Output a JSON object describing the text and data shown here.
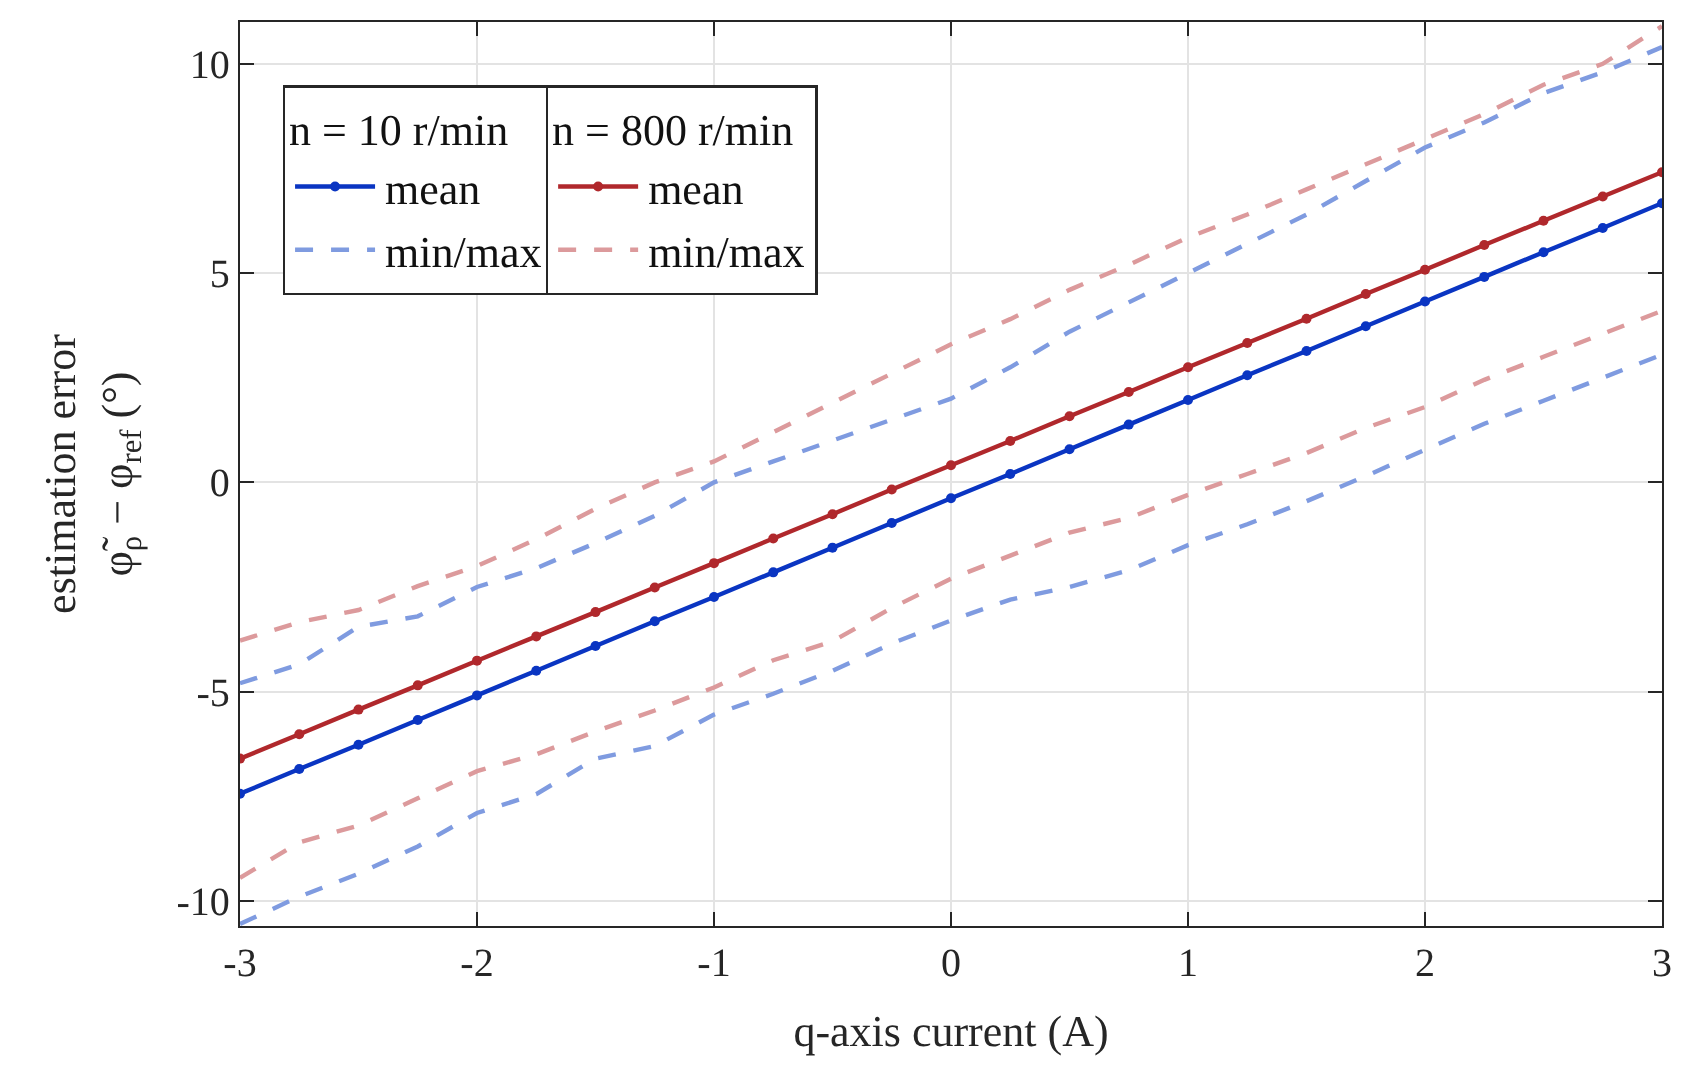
{
  "chart_data": {
    "type": "line",
    "xlabel": "q-axis current (A)",
    "ylabel": "estimation error\nφ̃$_{ρ}$ − φ$_{ref}$ (°)",
    "legend_title": [
      "n = 10 r/min",
      "n = 800 r/min"
    ],
    "x": [
      -3,
      -2.75,
      -2.5,
      -2.25,
      -2,
      -1.75,
      -1.5,
      -1.25,
      -1,
      -0.75,
      -0.5,
      -0.25,
      0,
      0.25,
      0.5,
      0.75,
      1,
      1.25,
      1.5,
      1.75,
      2,
      2.25,
      2.5,
      2.75,
      3
    ],
    "series": [
      {
        "name": "mean",
        "color": "#0a35c2",
        "marker": "circle",
        "line_style": "solid",
        "values": [
          -7.44,
          -6.85,
          -6.27,
          -5.68,
          -5.09,
          -4.5,
          -3.91,
          -3.32,
          -2.74,
          -2.15,
          -1.56,
          -0.97,
          -0.38,
          0.2,
          0.79,
          1.38,
          1.97,
          2.56,
          3.14,
          3.73,
          4.32,
          4.91,
          5.5,
          6.08,
          6.67
        ]
      },
      {
        "name": "min/max",
        "color": "#7f9be0",
        "marker": "none",
        "line_style": "dashed",
        "values": [
          -4.8,
          -4.35,
          -3.45,
          -3.2,
          -2.5,
          -2.05,
          -1.45,
          -0.8,
          0.0,
          0.5,
          1.0,
          1.5,
          2.0,
          2.75,
          3.6,
          4.3,
          5.0,
          5.7,
          6.4,
          7.2,
          8.0,
          8.6,
          9.3,
          9.8,
          10.4
        ]
      },
      {
        "color": "#7f9be0",
        "marker": "none",
        "line_style": "dashed",
        "values": [
          -10.55,
          -9.9,
          -9.35,
          -8.7,
          -7.9,
          -7.45,
          -6.6,
          -6.3,
          -5.55,
          -5.05,
          -4.5,
          -3.85,
          -3.3,
          -2.8,
          -2.5,
          -2.1,
          -1.5,
          -1.0,
          -0.45,
          0.15,
          0.78,
          1.4,
          1.95,
          2.5,
          3.05
        ]
      },
      {
        "name": "mean",
        "color": "#b0282c",
        "marker": "circle",
        "line_style": "solid",
        "values": [
          -6.6,
          -6.02,
          -5.43,
          -4.85,
          -4.26,
          -3.68,
          -3.1,
          -2.51,
          -1.93,
          -1.34,
          -0.76,
          -0.17,
          0.41,
          0.99,
          1.58,
          2.16,
          2.75,
          3.33,
          3.91,
          4.5,
          5.08,
          5.67,
          6.25,
          6.83,
          7.41
        ]
      },
      {
        "name": "min/max",
        "color": "#dc9a9c",
        "marker": "none",
        "line_style": "dashed",
        "values": [
          -3.78,
          -3.34,
          -3.05,
          -2.48,
          -2.0,
          -1.36,
          -0.63,
          0.0,
          0.5,
          1.2,
          1.9,
          2.6,
          3.3,
          3.9,
          4.6,
          5.2,
          5.85,
          6.4,
          7.0,
          7.6,
          8.2,
          8.8,
          9.5,
          10.0,
          10.9
        ]
      },
      {
        "color": "#dc9a9c",
        "marker": "none",
        "line_style": "dashed",
        "values": [
          -9.45,
          -8.6,
          -8.2,
          -7.55,
          -6.9,
          -6.5,
          -5.95,
          -5.45,
          -4.9,
          -4.25,
          -3.8,
          -3.0,
          -2.3,
          -1.75,
          -1.2,
          -0.85,
          -0.3,
          0.2,
          0.7,
          1.3,
          1.8,
          2.45,
          3.0,
          3.55,
          4.1
        ]
      }
    ],
    "xlim": [
      -3,
      3
    ],
    "xticks": [
      -3,
      -2,
      -1,
      0,
      1,
      2,
      3
    ],
    "ylim": [
      -10.6,
      11
    ],
    "yticks": [
      -10,
      -5,
      0,
      5,
      10
    ],
    "grid": true,
    "legend": "top left"
  }
}
